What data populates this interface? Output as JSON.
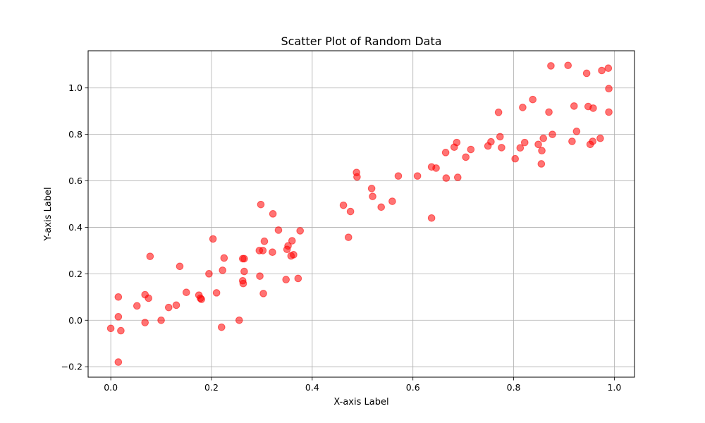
{
  "chart_data": {
    "type": "scatter",
    "title": "Scatter Plot of Random Data",
    "xlabel": "X-axis Label",
    "ylabel": "Y-axis Label",
    "xlim": [
      -0.045,
      1.04
    ],
    "ylim": [
      -0.245,
      1.16
    ],
    "xticks": [
      0.0,
      0.2,
      0.4,
      0.6,
      0.8,
      1.0
    ],
    "xtick_labels": [
      "0.0",
      "0.2",
      "0.4",
      "0.6",
      "0.8",
      "1.0"
    ],
    "yticks": [
      -0.2,
      0.0,
      0.2,
      0.4,
      0.6,
      0.8,
      1.0
    ],
    "ytick_labels": [
      "−0.2",
      "0.0",
      "0.2",
      "0.4",
      "0.6",
      "0.8",
      "1.0"
    ],
    "grid": true,
    "marker_color": "#ff0000",
    "marker_alpha": 0.55,
    "points": [
      [
        0.0,
        -0.035
      ],
      [
        0.015,
        0.015
      ],
      [
        0.015,
        0.1
      ],
      [
        0.015,
        -0.18
      ],
      [
        0.02,
        -0.045
      ],
      [
        0.052,
        0.062
      ],
      [
        0.068,
        0.11
      ],
      [
        0.068,
        -0.01
      ],
      [
        0.075,
        0.095
      ],
      [
        0.078,
        0.275
      ],
      [
        0.1,
        0.0
      ],
      [
        0.115,
        0.055
      ],
      [
        0.13,
        0.065
      ],
      [
        0.137,
        0.232
      ],
      [
        0.15,
        0.12
      ],
      [
        0.175,
        0.108
      ],
      [
        0.178,
        0.095
      ],
      [
        0.18,
        0.09
      ],
      [
        0.195,
        0.2
      ],
      [
        0.203,
        0.35
      ],
      [
        0.21,
        0.118
      ],
      [
        0.22,
        -0.03
      ],
      [
        0.222,
        0.215
      ],
      [
        0.225,
        0.268
      ],
      [
        0.255,
        0.0
      ],
      [
        0.262,
        0.265
      ],
      [
        0.262,
        0.17
      ],
      [
        0.263,
        0.158
      ],
      [
        0.265,
        0.21
      ],
      [
        0.265,
        0.265
      ],
      [
        0.295,
        0.3
      ],
      [
        0.296,
        0.19
      ],
      [
        0.298,
        0.498
      ],
      [
        0.302,
        0.3
      ],
      [
        0.303,
        0.115
      ],
      [
        0.305,
        0.34
      ],
      [
        0.321,
        0.293
      ],
      [
        0.322,
        0.458
      ],
      [
        0.333,
        0.388
      ],
      [
        0.348,
        0.175
      ],
      [
        0.35,
        0.305
      ],
      [
        0.352,
        0.32
      ],
      [
        0.358,
        0.277
      ],
      [
        0.36,
        0.342
      ],
      [
        0.363,
        0.282
      ],
      [
        0.372,
        0.18
      ],
      [
        0.376,
        0.385
      ],
      [
        0.462,
        0.495
      ],
      [
        0.472,
        0.357
      ],
      [
        0.476,
        0.468
      ],
      [
        0.488,
        0.636
      ],
      [
        0.489,
        0.617
      ],
      [
        0.518,
        0.567
      ],
      [
        0.52,
        0.533
      ],
      [
        0.537,
        0.487
      ],
      [
        0.559,
        0.512
      ],
      [
        0.571,
        0.621
      ],
      [
        0.609,
        0.621
      ],
      [
        0.637,
        0.44
      ],
      [
        0.637,
        0.66
      ],
      [
        0.646,
        0.655
      ],
      [
        0.665,
        0.722
      ],
      [
        0.666,
        0.612
      ],
      [
        0.682,
        0.745
      ],
      [
        0.687,
        0.765
      ],
      [
        0.689,
        0.615
      ],
      [
        0.705,
        0.702
      ],
      [
        0.715,
        0.735
      ],
      [
        0.749,
        0.75
      ],
      [
        0.755,
        0.768
      ],
      [
        0.77,
        0.895
      ],
      [
        0.773,
        0.79
      ],
      [
        0.776,
        0.743
      ],
      [
        0.803,
        0.695
      ],
      [
        0.813,
        0.742
      ],
      [
        0.818,
        0.916
      ],
      [
        0.822,
        0.765
      ],
      [
        0.838,
        0.95
      ],
      [
        0.849,
        0.757
      ],
      [
        0.855,
        0.673
      ],
      [
        0.856,
        0.73
      ],
      [
        0.859,
        0.783
      ],
      [
        0.87,
        0.896
      ],
      [
        0.874,
        1.095
      ],
      [
        0.877,
        0.8
      ],
      [
        0.908,
        1.097
      ],
      [
        0.916,
        0.77
      ],
      [
        0.92,
        0.922
      ],
      [
        0.925,
        0.813
      ],
      [
        0.945,
        1.063
      ],
      [
        0.948,
        0.92
      ],
      [
        0.952,
        0.757
      ],
      [
        0.957,
        0.77
      ],
      [
        0.958,
        0.913
      ],
      [
        0.972,
        0.783
      ],
      [
        0.975,
        1.075
      ],
      [
        0.988,
        1.085
      ],
      [
        0.989,
        0.997
      ],
      [
        0.989,
        0.896
      ]
    ]
  }
}
